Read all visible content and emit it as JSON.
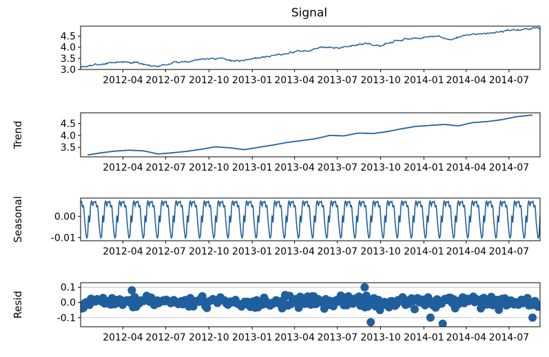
{
  "title": "Signal",
  "colors": {
    "line": "#1f5f9e",
    "grid": "#b0b0b0",
    "axis": "#000000"
  },
  "x_tick_labels": [
    "2012-04",
    "2012-07",
    "2012-10",
    "2013-01",
    "2013-04",
    "2013-07",
    "2013-10",
    "2014-01",
    "2014-04",
    "2014-07"
  ],
  "chart_data": [
    {
      "type": "line",
      "title": "Signal",
      "ylabel": "",
      "xlim": [
        "2012-01-02",
        "2014-09-05"
      ],
      "ylim": [
        3.0,
        4.95
      ],
      "yticks": [
        "3.0",
        "3.5",
        "4.0",
        "4.5"
      ],
      "x_tick_dates": [
        "2012-04-01",
        "2012-07-01",
        "2012-10-01",
        "2013-01-01",
        "2013-04-01",
        "2013-07-01",
        "2013-10-01",
        "2014-01-01",
        "2014-04-01",
        "2014-07-01"
      ],
      "series": [
        {
          "x": [
            "2012-01-02",
            "2012-02-01",
            "2012-03-01",
            "2012-04-01",
            "2012-05-01",
            "2012-06-01",
            "2012-07-01",
            "2012-08-01",
            "2012-09-01",
            "2012-10-01",
            "2012-11-01",
            "2012-12-01",
            "2013-01-01",
            "2013-02-01",
            "2013-03-01",
            "2013-04-01",
            "2013-05-01",
            "2013-06-01",
            "2013-07-01",
            "2013-08-01",
            "2013-09-01",
            "2013-10-01",
            "2013-11-01",
            "2013-12-01",
            "2014-01-01",
            "2014-02-01",
            "2014-03-01",
            "2014-04-01",
            "2014-05-01",
            "2014-06-01",
            "2014-07-01",
            "2014-08-01",
            "2014-09-05"
          ],
          "values": [
            3.1,
            3.2,
            3.28,
            3.36,
            3.3,
            3.16,
            3.22,
            3.34,
            3.42,
            3.52,
            3.48,
            3.36,
            3.5,
            3.58,
            3.68,
            3.8,
            3.84,
            4.02,
            3.95,
            4.1,
            4.15,
            4.06,
            4.3,
            4.38,
            4.42,
            4.48,
            4.32,
            4.56,
            4.6,
            4.66,
            4.74,
            4.8,
            4.88
          ]
        }
      ]
    },
    {
      "type": "line",
      "title": "",
      "ylabel": "Trend",
      "xlim": [
        "2012-01-02",
        "2014-09-05"
      ],
      "ylim": [
        3.1,
        4.95
      ],
      "yticks": [
        "3.5",
        "4.0",
        "4.5"
      ],
      "x_tick_dates": [
        "2012-04-01",
        "2012-07-01",
        "2012-10-01",
        "2013-01-01",
        "2013-04-01",
        "2013-07-01",
        "2013-10-01",
        "2014-01-01",
        "2014-04-01",
        "2014-07-01"
      ],
      "series": [
        {
          "x": [
            "2012-01-17",
            "2012-02-15",
            "2012-03-15",
            "2012-04-15",
            "2012-05-15",
            "2012-06-15",
            "2012-07-15",
            "2012-08-15",
            "2012-09-15",
            "2012-10-15",
            "2012-11-15",
            "2012-12-15",
            "2013-01-15",
            "2013-02-15",
            "2013-03-15",
            "2013-04-15",
            "2013-05-15",
            "2013-06-15",
            "2013-07-15",
            "2013-08-15",
            "2013-09-15",
            "2013-10-15",
            "2013-11-15",
            "2013-12-15",
            "2014-01-15",
            "2014-02-15",
            "2014-03-15",
            "2014-04-15",
            "2014-05-15",
            "2014-06-15",
            "2014-07-15",
            "2014-08-20"
          ],
          "values": [
            3.18,
            3.27,
            3.34,
            3.38,
            3.35,
            3.22,
            3.27,
            3.33,
            3.42,
            3.52,
            3.48,
            3.4,
            3.5,
            3.6,
            3.7,
            3.78,
            3.86,
            4.0,
            3.98,
            4.1,
            4.08,
            4.16,
            4.28,
            4.38,
            4.42,
            4.46,
            4.4,
            4.54,
            4.58,
            4.66,
            4.78,
            4.86
          ]
        }
      ]
    },
    {
      "type": "line",
      "title": "",
      "ylabel": "Seasonal",
      "xlim": [
        "2012-01-02",
        "2014-09-05"
      ],
      "ylim": [
        -0.0115,
        0.0085
      ],
      "yticks": [
        "-0.01",
        "0.00"
      ],
      "x_tick_dates": [
        "2012-04-01",
        "2012-07-01",
        "2012-10-01",
        "2013-01-01",
        "2013-04-01",
        "2013-07-01",
        "2013-10-01",
        "2014-01-01",
        "2014-04-01",
        "2014-07-01"
      ],
      "period_days": 30,
      "cycle_profile": [
        0.0065,
        0.007,
        0.004,
        0.0055,
        -0.002,
        -0.007,
        -0.0105,
        -0.009,
        0.001,
        -0.0035,
        0.006,
        0.0075,
        0.0045,
        0.0068
      ]
    },
    {
      "type": "scatter",
      "title": "",
      "ylabel": "Resid",
      "xlim": [
        "2012-01-02",
        "2014-09-05"
      ],
      "ylim": [
        -0.16,
        0.13
      ],
      "yticks": [
        "-0.1",
        "0.0",
        "0.1"
      ],
      "grid": true,
      "x_tick_dates": [
        "2012-04-01",
        "2012-07-01",
        "2012-10-01",
        "2013-01-01",
        "2013-04-01",
        "2013-07-01",
        "2013-10-01",
        "2014-01-01",
        "2014-04-01",
        "2014-07-01"
      ],
      "notable_points": [
        {
          "x": "2012-04-20",
          "y": 0.08
        },
        {
          "x": "2013-08-28",
          "y": 0.1
        },
        {
          "x": "2013-09-10",
          "y": -0.13
        },
        {
          "x": "2014-01-15",
          "y": -0.1
        },
        {
          "x": "2014-02-10",
          "y": -0.14
        },
        {
          "x": "2014-08-20",
          "y": -0.1
        }
      ]
    }
  ]
}
